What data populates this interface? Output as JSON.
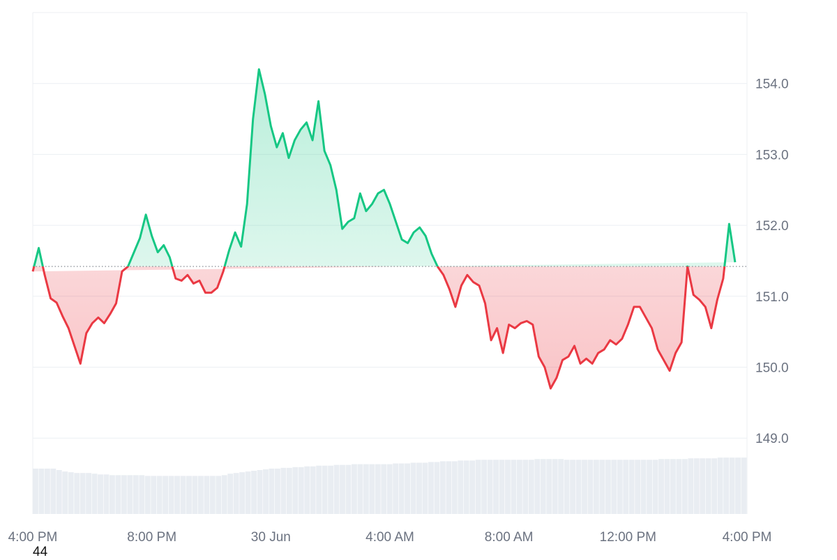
{
  "chart_data": {
    "type": "area",
    "baseline": 151.42,
    "ylim": [
      148.0,
      155.0
    ],
    "y_ticks": [
      {
        "value": 154.0,
        "label": "154.0"
      },
      {
        "value": 153.0,
        "label": "153.0"
      },
      {
        "value": 152.0,
        "label": "152.0"
      },
      {
        "value": 151.0,
        "label": "151.0"
      },
      {
        "value": 150.0,
        "label": "150.0"
      },
      {
        "value": 149.0,
        "label": "149.0"
      }
    ],
    "x_ticks": [
      "4:00 PM",
      "8:00 PM",
      "30 Jun",
      "4:00 AM",
      "8:00 AM",
      "12:00 PM",
      "4:00 PM"
    ],
    "x_tick_hours": [
      0,
      4,
      8,
      12,
      16,
      20,
      24
    ],
    "price_hours": [
      0,
      0.2,
      0.4,
      0.6,
      0.8,
      1.0,
      1.2,
      1.4,
      1.6,
      1.8,
      2.0,
      2.2,
      2.4,
      2.6,
      2.8,
      3.0,
      3.2,
      3.4,
      3.6,
      3.8,
      4.0,
      4.2,
      4.4,
      4.6,
      4.8,
      5.0,
      5.2,
      5.4,
      5.6,
      5.8,
      6.0,
      6.2,
      6.4,
      6.6,
      6.8,
      7.0,
      7.2,
      7.4,
      7.6,
      7.8,
      8.0,
      8.2,
      8.4,
      8.6,
      8.8,
      9.0,
      9.2,
      9.4,
      9.6,
      9.8,
      10.0,
      10.2,
      10.4,
      10.6,
      10.8,
      11.0,
      11.2,
      11.4,
      11.6,
      11.8,
      12.0,
      12.2,
      12.4,
      12.6,
      12.8,
      13.0,
      13.2,
      13.4,
      13.6,
      13.8,
      14.0,
      14.2,
      14.4,
      14.6,
      14.8,
      15.0,
      15.2,
      15.4,
      15.6,
      15.8,
      16.0,
      16.2,
      16.4,
      16.6,
      16.8,
      17.0,
      17.2,
      17.4,
      17.6,
      17.8,
      18.0,
      18.2,
      18.4,
      18.6,
      18.8,
      19.0,
      19.2,
      19.4,
      19.6,
      19.8,
      20.0,
      20.2,
      20.4,
      20.6,
      20.8,
      21.0,
      21.2,
      21.4,
      21.6,
      21.8,
      22.0,
      22.2,
      22.4,
      22.6,
      22.8,
      23.0,
      23.2,
      23.4,
      23.6,
      23.8,
      24.0
    ],
    "price_values": [
      151.35,
      151.68,
      151.3,
      150.97,
      150.91,
      150.72,
      150.55,
      150.3,
      150.05,
      150.48,
      150.62,
      150.7,
      150.62,
      150.75,
      150.9,
      151.35,
      151.42,
      151.62,
      151.82,
      152.15,
      151.85,
      151.62,
      151.72,
      151.55,
      151.25,
      151.22,
      151.3,
      151.18,
      151.22,
      151.05,
      151.05,
      151.12,
      151.35,
      151.65,
      151.9,
      151.7,
      152.3,
      153.5,
      154.2,
      153.85,
      153.4,
      153.1,
      153.3,
      152.95,
      153.2,
      153.35,
      153.45,
      153.2,
      153.75,
      153.05,
      152.85,
      152.5,
      151.95,
      152.05,
      152.1,
      152.45,
      152.2,
      152.3,
      152.45,
      152.5,
      152.3,
      152.05,
      151.8,
      151.75,
      151.9,
      151.97,
      151.85,
      151.6,
      151.42,
      151.3,
      151.1,
      150.85,
      151.15,
      151.3,
      151.2,
      151.15,
      150.9,
      150.38,
      150.55,
      150.2,
      150.6,
      150.55,
      150.62,
      150.65,
      150.6,
      150.15,
      150.0,
      149.7,
      149.85,
      150.1,
      150.15,
      150.3,
      150.05,
      150.12,
      150.05,
      150.2,
      150.25,
      150.38,
      150.32,
      150.4,
      150.6,
      150.85,
      150.85,
      150.7,
      150.55,
      150.25,
      150.1,
      149.95,
      150.2,
      150.35,
      151.42,
      151.02,
      150.95,
      150.85,
      150.55,
      150.95,
      151.25,
      152.02,
      151.48
    ],
    "volume_levels": [
      0.62,
      0.62,
      0.62,
      0.62,
      0.6,
      0.58,
      0.57,
      0.56,
      0.56,
      0.56,
      0.55,
      0.54,
      0.54,
      0.53,
      0.53,
      0.53,
      0.53,
      0.53,
      0.53,
      0.52,
      0.52,
      0.52,
      0.52,
      0.52,
      0.52,
      0.52,
      0.52,
      0.52,
      0.52,
      0.52,
      0.52,
      0.52,
      0.53,
      0.55,
      0.56,
      0.57,
      0.58,
      0.59,
      0.6,
      0.61,
      0.62,
      0.62,
      0.63,
      0.63,
      0.64,
      0.64,
      0.65,
      0.65,
      0.66,
      0.66,
      0.66,
      0.67,
      0.67,
      0.67,
      0.68,
      0.68,
      0.68,
      0.68,
      0.68,
      0.68,
      0.68,
      0.69,
      0.69,
      0.69,
      0.7,
      0.7,
      0.7,
      0.71,
      0.71,
      0.72,
      0.72,
      0.72,
      0.73,
      0.73,
      0.73,
      0.74,
      0.74,
      0.74,
      0.74,
      0.74,
      0.74,
      0.74,
      0.74,
      0.74,
      0.74,
      0.75,
      0.75,
      0.75,
      0.75,
      0.75,
      0.74,
      0.74,
      0.74,
      0.74,
      0.74,
      0.74,
      0.74,
      0.74,
      0.74,
      0.74,
      0.74,
      0.74,
      0.74,
      0.74,
      0.74,
      0.74,
      0.75,
      0.75,
      0.75,
      0.75,
      0.75,
      0.76,
      0.76,
      0.76,
      0.76,
      0.76,
      0.77,
      0.77,
      0.77,
      0.77,
      0.77
    ],
    "colors": {
      "up": "#16c784",
      "down": "#ea3943",
      "up_fill": "#16c784",
      "down_fill": "#ea3943",
      "grid": "#eceff3",
      "baseline": "#7a7f87",
      "volume": "#e9edf2"
    }
  },
  "footer_label": "44"
}
